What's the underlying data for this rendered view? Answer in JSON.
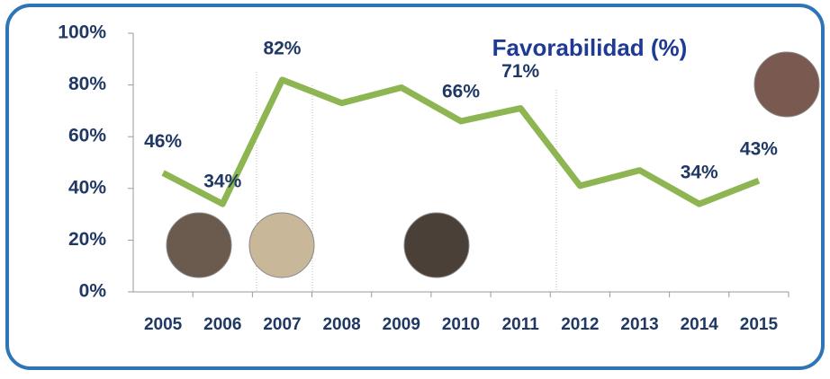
{
  "chart_data": {
    "type": "line",
    "title": "Favorabilidad (%)",
    "categories": [
      "2005",
      "2006",
      "2007",
      "2008",
      "2009",
      "2010",
      "2011",
      "2012",
      "2013",
      "2014",
      "2015"
    ],
    "values": [
      46,
      34,
      82,
      73,
      79,
      66,
      71,
      41,
      47,
      34,
      43
    ],
    "value_labels": [
      "46%",
      "34%",
      "82%",
      null,
      null,
      "66%",
      "71%",
      null,
      null,
      "34%",
      "43%"
    ],
    "color": "#8db552",
    "ylim": [
      0,
      100
    ],
    "yticks": [
      {
        "value": 0,
        "label": "0%"
      },
      {
        "value": 20,
        "label": "20%"
      },
      {
        "value": 40,
        "label": "40%"
      },
      {
        "value": 60,
        "label": "60%"
      },
      {
        "value": 80,
        "label": "80%"
      },
      {
        "value": 100,
        "label": "100%"
      }
    ]
  }
}
